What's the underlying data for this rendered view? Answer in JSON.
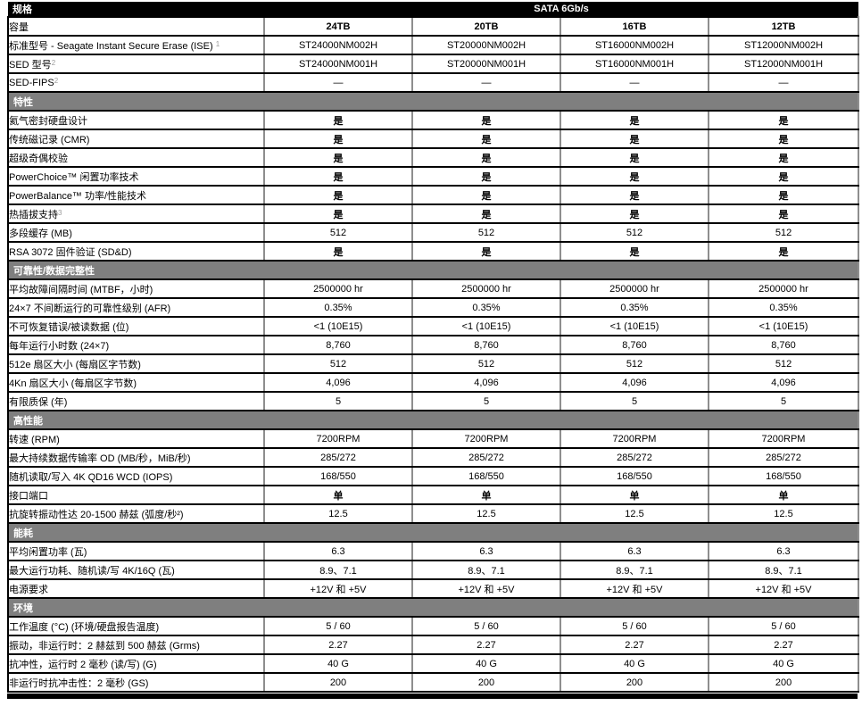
{
  "header": {
    "spec_label": "规格",
    "interface_label": "SATA 6Gb/s"
  },
  "columns": [
    "24TB",
    "20TB",
    "16TB",
    "12TB"
  ],
  "colors": {
    "header_bg": "#000000",
    "section_bg": "#7f7f7f",
    "row_border": "#000000",
    "column_border": "#8e8e8e",
    "footnote_color": "#9b9b9b"
  },
  "sections": [
    {
      "title": "",
      "rows": [
        {
          "label": "容量",
          "sup": "",
          "bold": true,
          "values": [
            "24TB",
            "20TB",
            "16TB",
            "12TB"
          ]
        },
        {
          "label": "标准型号 - Seagate Instant Secure Erase (ISE) ",
          "sup": "1",
          "bold": false,
          "values": [
            "ST24000NM002H",
            "ST20000NM002H",
            "ST16000NM002H",
            "ST12000NM002H"
          ]
        },
        {
          "label": "SED 型号",
          "sup": "2",
          "bold": false,
          "values": [
            "ST24000NM001H",
            "ST20000NM001H",
            "ST16000NM001H",
            "ST12000NM001H"
          ]
        },
        {
          "label": "SED-FIPS",
          "sup": "2",
          "bold": false,
          "values": [
            "—",
            "—",
            "—",
            "—"
          ]
        }
      ]
    },
    {
      "title": "特性",
      "rows": [
        {
          "label": "氦气密封硬盘设计",
          "sup": "",
          "bold": true,
          "values": [
            "是",
            "是",
            "是",
            "是"
          ]
        },
        {
          "label": "传统磁记录 (CMR)",
          "sup": "",
          "bold": true,
          "values": [
            "是",
            "是",
            "是",
            "是"
          ]
        },
        {
          "label": "超级奇偶校验",
          "sup": "",
          "bold": true,
          "values": [
            "是",
            "是",
            "是",
            "是"
          ]
        },
        {
          "label": "PowerChoice™ 闲置功率技术",
          "sup": "",
          "bold": true,
          "values": [
            "是",
            "是",
            "是",
            "是"
          ]
        },
        {
          "label": "PowerBalance™ 功率/性能技术",
          "sup": "",
          "bold": true,
          "values": [
            "是",
            "是",
            "是",
            "是"
          ]
        },
        {
          "label": "热插拔支持",
          "sup": "3",
          "bold": true,
          "values": [
            "是",
            "是",
            "是",
            "是"
          ]
        },
        {
          "label": "多段缓存 (MB)",
          "sup": "",
          "bold": false,
          "values": [
            "512",
            "512",
            "512",
            "512"
          ]
        },
        {
          "label": "RSA 3072 固件验证 (SD&D)",
          "sup": "",
          "bold": true,
          "values": [
            "是",
            "是",
            "是",
            "是"
          ]
        }
      ]
    },
    {
      "title": "可靠性/数据完整性",
      "rows": [
        {
          "label": "平均故障间隔时间 (MTBF，小时)",
          "sup": "",
          "bold": false,
          "values": [
            "2500000 hr",
            "2500000 hr",
            "2500000 hr",
            "2500000 hr"
          ]
        },
        {
          "label": "24×7 不间断运行的可靠性级别 (AFR)",
          "sup": "",
          "bold": false,
          "values": [
            "0.35%",
            "0.35%",
            "0.35%",
            "0.35%"
          ]
        },
        {
          "label": "不可恢复错误/被读数据 (位)",
          "sup": "",
          "bold": false,
          "values": [
            "<1 (10E15)",
            "<1 (10E15)",
            "<1 (10E15)",
            "<1 (10E15)"
          ]
        },
        {
          "label": "每年运行小时数 (24×7)",
          "sup": "",
          "bold": false,
          "values": [
            "8,760",
            "8,760",
            "8,760",
            "8,760"
          ]
        },
        {
          "label": "512e 扇区大小 (每扇区字节数)",
          "sup": "",
          "bold": false,
          "values": [
            "512",
            "512",
            "512",
            "512"
          ]
        },
        {
          "label": "4Kn 扇区大小 (每扇区字节数)",
          "sup": "",
          "bold": false,
          "values": [
            "4,096",
            "4,096",
            "4,096",
            "4,096"
          ]
        },
        {
          "label": "有限质保 (年)",
          "sup": "",
          "bold": false,
          "values": [
            "5",
            "5",
            "5",
            "5"
          ]
        }
      ]
    },
    {
      "title": "高性能",
      "rows": [
        {
          "label": "转速 (RPM)",
          "sup": "",
          "bold": false,
          "values": [
            "7200RPM",
            "7200RPM",
            "7200RPM",
            "7200RPM"
          ]
        },
        {
          "label": "最大持续数据传输率 OD (MB/秒，MiB/秒)",
          "sup": "",
          "bold": false,
          "values": [
            "285/272",
            "285/272",
            "285/272",
            "285/272"
          ]
        },
        {
          "label": "随机读取/写入 4K QD16 WCD (IOPS)",
          "sup": "",
          "bold": false,
          "values": [
            "168/550",
            "168/550",
            "168/550",
            "168/550"
          ]
        },
        {
          "label": "接口端口",
          "sup": "",
          "bold": true,
          "values": [
            "单",
            "单",
            "单",
            "单"
          ]
        },
        {
          "label": "抗旋转振动性达 20-1500 赫兹 (弧度/秒²)",
          "sup": "",
          "bold": false,
          "values": [
            "12.5",
            "12.5",
            "12.5",
            "12.5"
          ]
        }
      ]
    },
    {
      "title": "能耗",
      "rows": [
        {
          "label": "平均闲置功率 (瓦)",
          "sup": "",
          "bold": false,
          "values": [
            "6.3",
            "6.3",
            "6.3",
            "6.3"
          ]
        },
        {
          "label": "最大运行功耗、随机读/写 4K/16Q (瓦)",
          "sup": "",
          "bold": false,
          "values": [
            "8.9、7.1",
            "8.9、7.1",
            "8.9、7.1",
            "8.9、7.1"
          ]
        },
        {
          "label": "电源要求",
          "sup": "",
          "bold": false,
          "values": [
            "+12V 和 +5V",
            "+12V 和 +5V",
            "+12V 和 +5V",
            "+12V 和 +5V"
          ]
        }
      ]
    },
    {
      "title": "环境",
      "rows": [
        {
          "label": "工作温度 (°C) (环境/硬盘报告温度)",
          "sup": "",
          "bold": false,
          "values": [
            "5 / 60",
            "5 / 60",
            "5 / 60",
            "5 / 60"
          ]
        },
        {
          "label": "振动，非运行时：2 赫兹到 500 赫兹 (Grms)",
          "sup": "",
          "bold": false,
          "values": [
            "2.27",
            "2.27",
            "2.27",
            "2.27"
          ]
        },
        {
          "label": "抗冲性，运行时 2 毫秒 (读/写) (G)",
          "sup": "",
          "bold": false,
          "values": [
            "40 G",
            "40 G",
            "40 G",
            "40 G"
          ]
        },
        {
          "label": "非运行时抗冲击性：2 毫秒 (GS)",
          "sup": "",
          "bold": false,
          "values": [
            "200",
            "200",
            "200",
            "200"
          ]
        }
      ]
    }
  ]
}
